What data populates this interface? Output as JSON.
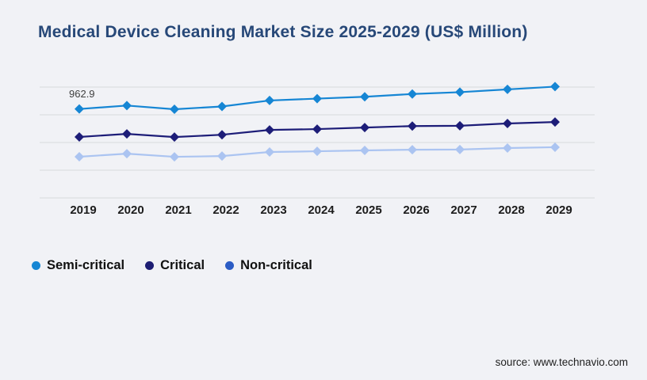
{
  "title": "Medical Device Cleaning Market Size 2025-2029 (US$ Million)",
  "source": "source: www.technavio.com",
  "colors": {
    "background": "#f1f2f6",
    "title": "#274878",
    "gridline": "#d8d9dc",
    "axis_label": "#1c1c1c",
    "data_label": "#3f3f3f",
    "legend_text": "#111111",
    "source_text": "#1f1f1f"
  },
  "chart_data": {
    "type": "line",
    "title": "Medical Device Cleaning Market Size 2025-2029 (US$ Million)",
    "xlabel": "",
    "ylabel": "US$ Million",
    "x": [
      "2019",
      "2020",
      "2021",
      "2022",
      "2023",
      "2024",
      "2025",
      "2026",
      "2027",
      "2028",
      "2029"
    ],
    "series": [
      {
        "name": "Semi-critical",
        "line_color": "#1686d4",
        "legend_color": "#1686d4",
        "marker": "diamond",
        "values": [
          962.9,
          1000,
          960,
          990,
          1055,
          1075,
          1095,
          1125,
          1145,
          1175,
          1205
        ]
      },
      {
        "name": "Critical",
        "line_color": "#1d1d78",
        "legend_color": "#1d1d73",
        "marker": "diamond",
        "values": [
          660,
          693,
          659,
          684,
          736,
          745,
          762,
          778,
          781,
          806,
          822
        ]
      },
      {
        "name": "Non-critical",
        "line_color": "#abc4f1",
        "legend_color": "#2b5cc5",
        "marker": "diamond",
        "values": [
          446,
          479,
          445,
          453,
          497,
          505,
          514,
          522,
          524,
          540,
          549
        ]
      }
    ],
    "annotations": [
      {
        "series": "Semi-critical",
        "x": "2019",
        "label": "962.9"
      }
    ],
    "ylim": [
      0,
      1200
    ],
    "gridline_count": 5,
    "grid": true,
    "legend_position": "bottom-left"
  }
}
